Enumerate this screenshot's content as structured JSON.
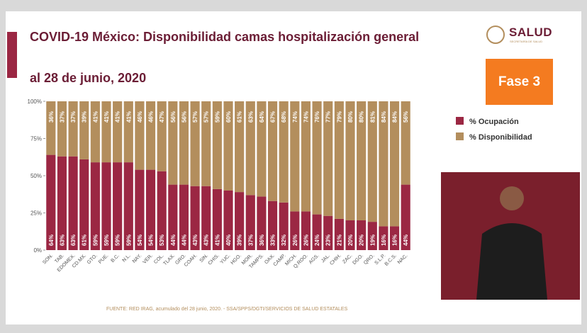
{
  "chart_data": {
    "type": "stacked-bar",
    "title": "COVID-19 México: Disponibilidad camas hospitalización general",
    "subtitle": "al 28 de junio, 2020",
    "source": "FUENTE: RED IRAG, acumulado del 28 junio, 2020. -  SSA/SPPS/DGTI/SERVICIOS DE SALUD ESTATALES",
    "categories": [
      "SON.",
      "TAB.",
      "EDOMEX.",
      "CD.MX.",
      "GTO.",
      "PUE.",
      "B.C.",
      "N.L.",
      "NAY.",
      "VER.",
      "COL.",
      "TLAX.",
      "GRO.",
      "COAH.",
      "SIN.",
      "CHIS.",
      "YUC.",
      "HGO.",
      "MOR.",
      "TAMPS.",
      "OAX.",
      "CAMP.",
      "MICH.",
      "Q.ROO.",
      "AGS.",
      "JAL.",
      "CHIH.",
      "ZAC.",
      "DGO.",
      "QRO.",
      "S.L.P.",
      "B.C.S.",
      "NAC."
    ],
    "series": [
      {
        "name": "% Ocupación",
        "color": "#9b2743",
        "values": [
          64,
          63,
          63,
          61,
          59,
          59,
          59,
          59,
          54,
          54,
          53,
          44,
          44,
          43,
          43,
          41,
          40,
          39,
          37,
          36,
          33,
          32,
          26,
          26,
          24,
          23,
          21,
          20,
          20,
          19,
          16,
          16,
          44
        ],
        "value_labels": [
          "64%",
          "63%",
          "63%",
          "61%",
          "59%",
          "59%",
          "59%",
          "59%",
          "54%",
          "54%",
          "53%",
          "44%",
          "44%",
          "43%",
          "43%",
          "41%",
          "40%",
          "39%",
          "37%",
          "36%",
          "33%",
          "32%",
          "26%",
          "26%",
          "24%",
          "23%",
          "21%",
          "20%",
          "20%",
          "19%",
          "16%",
          "16%",
          "44%"
        ]
      },
      {
        "name": "% Disponibilidad",
        "color": "#b38e5d",
        "values": [
          36,
          37,
          37,
          39,
          41,
          41,
          41,
          41,
          46,
          46,
          47,
          56,
          56,
          57,
          57,
          59,
          60,
          61,
          63,
          64,
          67,
          68,
          74,
          74,
          76,
          77,
          79,
          80,
          80,
          81,
          84,
          84,
          56
        ],
        "value_labels": [
          "36%",
          "37%",
          "37%",
          "39%",
          "41%",
          "41%",
          "41%",
          "41%",
          "46%",
          "46%",
          "47%",
          "56%",
          "56%",
          "57%",
          "57%",
          "59%",
          "60%",
          "61%",
          "63%",
          "64%",
          "67%",
          "68%",
          "74%",
          "74%",
          "76%",
          "77%",
          "79%",
          "80%",
          "80%",
          "81%",
          "84%",
          "84%",
          "56%"
        ]
      }
    ],
    "ylim": [
      0,
      100
    ],
    "yticks": [
      {
        "value": 0,
        "label": "0%"
      },
      {
        "value": 25,
        "label": "25%"
      },
      {
        "value": 50,
        "label": "50%"
      },
      {
        "value": 75,
        "label": "75%"
      },
      {
        "value": 100,
        "label": "100%"
      }
    ],
    "grid": false
  },
  "badge": "Fase 3",
  "logo": {
    "name": "SALUD",
    "subtitle": "SECRETARÍA DE SALUD"
  }
}
